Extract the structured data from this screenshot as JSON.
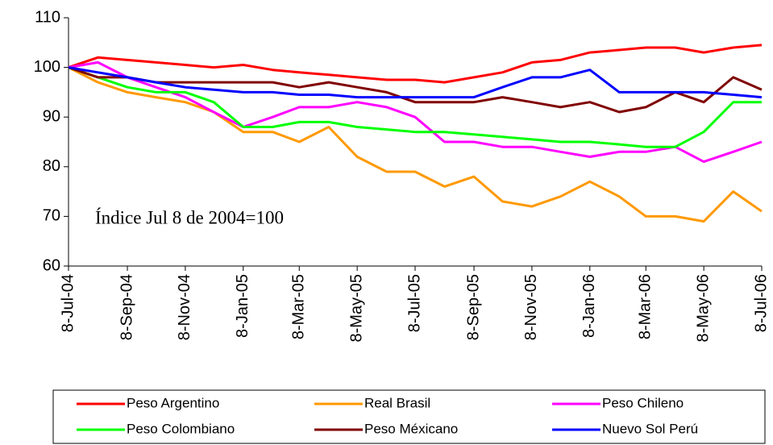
{
  "chart_data": {
    "type": "line",
    "annotation": "Índice Jul 8 de 2004=100",
    "x": [
      "2004-07-08",
      "2004-08-08",
      "2004-09-08",
      "2004-10-08",
      "2004-11-08",
      "2004-12-08",
      "2005-01-08",
      "2005-02-08",
      "2005-03-08",
      "2005-04-08",
      "2005-05-08",
      "2005-06-08",
      "2005-07-08",
      "2005-08-08",
      "2005-09-08",
      "2005-10-08",
      "2005-11-08",
      "2005-12-08",
      "2006-01-08",
      "2006-02-08",
      "2006-03-08",
      "2006-04-08",
      "2006-05-08",
      "2006-06-08",
      "2006-07-08"
    ],
    "series": [
      {
        "name": "Peso Argentino",
        "color": "#ff0000",
        "values": [
          100,
          102,
          101.5,
          101,
          100.5,
          100,
          100.5,
          99.5,
          99,
          98.5,
          98,
          97.5,
          97.5,
          97,
          98,
          99,
          101,
          101.5,
          103,
          103.5,
          104,
          104,
          103,
          104,
          104.5
        ]
      },
      {
        "name": "Real Brasil",
        "color": "#ff9900",
        "values": [
          100,
          97,
          95,
          94,
          93,
          91,
          87,
          87,
          85,
          88,
          82,
          79,
          79,
          76,
          78,
          73,
          72,
          74,
          77,
          74,
          70,
          70,
          69,
          75,
          71
        ]
      },
      {
        "name": "Peso Chileno",
        "color": "#ff00ff",
        "values": [
          100,
          101,
          98,
          96,
          94,
          91,
          88,
          90,
          92,
          92,
          93,
          92,
          90,
          85,
          85,
          84,
          84,
          83,
          82,
          83,
          83,
          84,
          81,
          83,
          85
        ]
      },
      {
        "name": "Peso Colombiano",
        "color": "#00ff00",
        "values": [
          100,
          98,
          96,
          95,
          95,
          93,
          88,
          88,
          89,
          89,
          88,
          87.5,
          87,
          87,
          86.5,
          86,
          85.5,
          85,
          85,
          84.5,
          84,
          84,
          87,
          93,
          93
        ]
      },
      {
        "name": "Peso Méxicano",
        "color": "#800000",
        "values": [
          100,
          98,
          98,
          97,
          97,
          97,
          97,
          97,
          96,
          97,
          96,
          95,
          93,
          93,
          93,
          94,
          93,
          92,
          93,
          91,
          92,
          95,
          93,
          98,
          95.5
        ]
      },
      {
        "name": "Nuevo Sol Perú",
        "color": "#0000ff",
        "values": [
          100,
          99,
          98,
          97,
          96,
          95.5,
          95,
          95,
          94.5,
          94.5,
          94,
          94,
          94,
          94,
          94,
          96,
          98,
          98,
          99.5,
          95,
          95,
          95,
          95,
          94.5,
          94
        ]
      }
    ],
    "xlim": [
      "2004-07-08",
      "2006-07-08"
    ],
    "xticks": [
      {
        "value": "2004-07-08",
        "label": "8-Jul-04"
      },
      {
        "value": "2004-09-08",
        "label": "8-Sep-04"
      },
      {
        "value": "2004-11-08",
        "label": "8-Nov-04"
      },
      {
        "value": "2005-01-08",
        "label": "8-Jan-05"
      },
      {
        "value": "2005-03-08",
        "label": "8-Mar-05"
      },
      {
        "value": "2005-05-08",
        "label": "8-May-05"
      },
      {
        "value": "2005-07-08",
        "label": "8-Jul-05"
      },
      {
        "value": "2005-09-08",
        "label": "8-Sep-05"
      },
      {
        "value": "2005-11-08",
        "label": "8-Nov-05"
      },
      {
        "value": "2006-01-08",
        "label": "8-Jan-06"
      },
      {
        "value": "2006-03-08",
        "label": "8-Mar-06"
      },
      {
        "value": "2006-05-08",
        "label": "8-May-06"
      },
      {
        "value": "2006-07-08",
        "label": "8-Jul-06"
      }
    ],
    "ylim": [
      60,
      110
    ],
    "yticks": [
      60,
      70,
      80,
      90,
      100,
      110
    ],
    "grid": false,
    "legend": "bottom"
  }
}
